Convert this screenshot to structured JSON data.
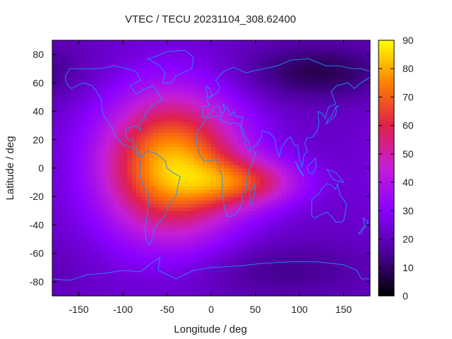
{
  "chart_data": {
    "type": "heatmap",
    "title": "VTEC / TECU 20231104_308.62400",
    "xlabel": "Longitude / deg",
    "ylabel": "Latitude / deg",
    "xlim": [
      -180,
      180
    ],
    "ylim": [
      -90,
      90
    ],
    "x_ticks": [
      -150,
      -100,
      -50,
      0,
      50,
      100,
      150
    ],
    "y_ticks": [
      -80,
      -60,
      -40,
      -20,
      0,
      20,
      40,
      60,
      80
    ],
    "colorbar": {
      "range": [
        0,
        90
      ],
      "ticks": [
        0,
        10,
        20,
        30,
        40,
        50,
        60,
        70,
        80,
        90
      ],
      "palette": [
        "#000000",
        "#4a0098",
        "#8a00ff",
        "#c41ed8",
        "#e0204a",
        "#ff8000",
        "#ffff00"
      ]
    },
    "field_model": {
      "background_tec": 22,
      "features": [
        {
          "name": "main-peak",
          "center_lon": -45,
          "center_lat": 2,
          "amplitude": 60,
          "sigma_lon": 55,
          "sigma_lat": 35
        },
        {
          "name": "eastern-tongue",
          "center_lon": 40,
          "center_lat": -10,
          "amplitude": 30,
          "sigma_lon": 45,
          "sigma_lat": 12
        },
        {
          "name": "polar-low-north",
          "center_lon": 120,
          "center_lat": 68,
          "amplitude": -14,
          "sigma_lon": 60,
          "sigma_lat": 14
        },
        {
          "name": "polar-low-south",
          "center_lon": 80,
          "center_lat": -72,
          "amplitude": -8,
          "sigma_lon": 70,
          "sigma_lat": 14
        }
      ],
      "grid_step_lon": 5,
      "grid_step_lat": 2.5
    },
    "coastline_color": "#1e90ff"
  }
}
